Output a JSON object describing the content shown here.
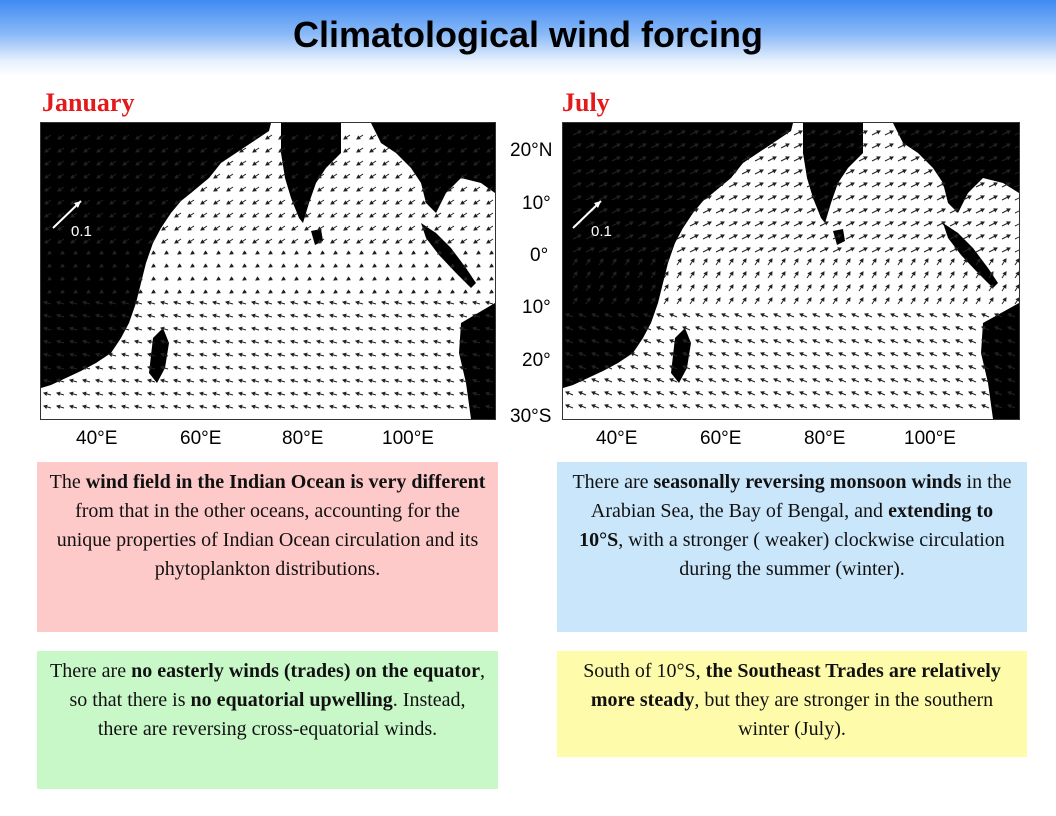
{
  "title": "Climatological wind forcing",
  "panels": [
    {
      "label": "January",
      "label_color": "#e31a1c",
      "scale_label": "0.1"
    },
    {
      "label": "July",
      "label_color": "#e31a1c",
      "scale_label": "0.1"
    }
  ],
  "axes": {
    "lon_ticks": [
      "40°E",
      "60°E",
      "80°E",
      "100°E"
    ],
    "lat_ticks": [
      "20°N",
      "10°",
      "0°",
      "10°",
      "20°",
      "30°S"
    ]
  },
  "boxes": {
    "jan_top": {
      "pre": "The ",
      "b1": "wind field in the Indian Ocean is very different",
      "post": " from that in the other oceans, accounting for the unique properties of Indian Ocean circulation and its phytoplankton distributions.",
      "color": "#fdc9c9"
    },
    "jan_bottom": {
      "pre": "There are ",
      "b1": "no easterly winds (trades) on the equator",
      "mid": ", so that there is ",
      "b2": "no equatorial upwelling",
      "post": ".  Instead, there are reversing cross-equatorial winds.",
      "color": "#c8f8c8"
    },
    "jul_top": {
      "pre": "There are ",
      "b1": "seasonally reversing monsoon winds",
      "mid": " in the Arabian Sea, the Bay of Bengal, and ",
      "b2": "extending to 10°S",
      "post": ", with a stronger ( weaker) clockwise circulation during  the summer (winter).",
      "color": "#c9e6fb"
    },
    "jul_bottom": {
      "pre": "South of 10°S, ",
      "b1": "the Southeast Trades are relatively more steady",
      "post": ", but they are stronger in the southern winter (July).",
      "color": "#fefcab"
    }
  }
}
